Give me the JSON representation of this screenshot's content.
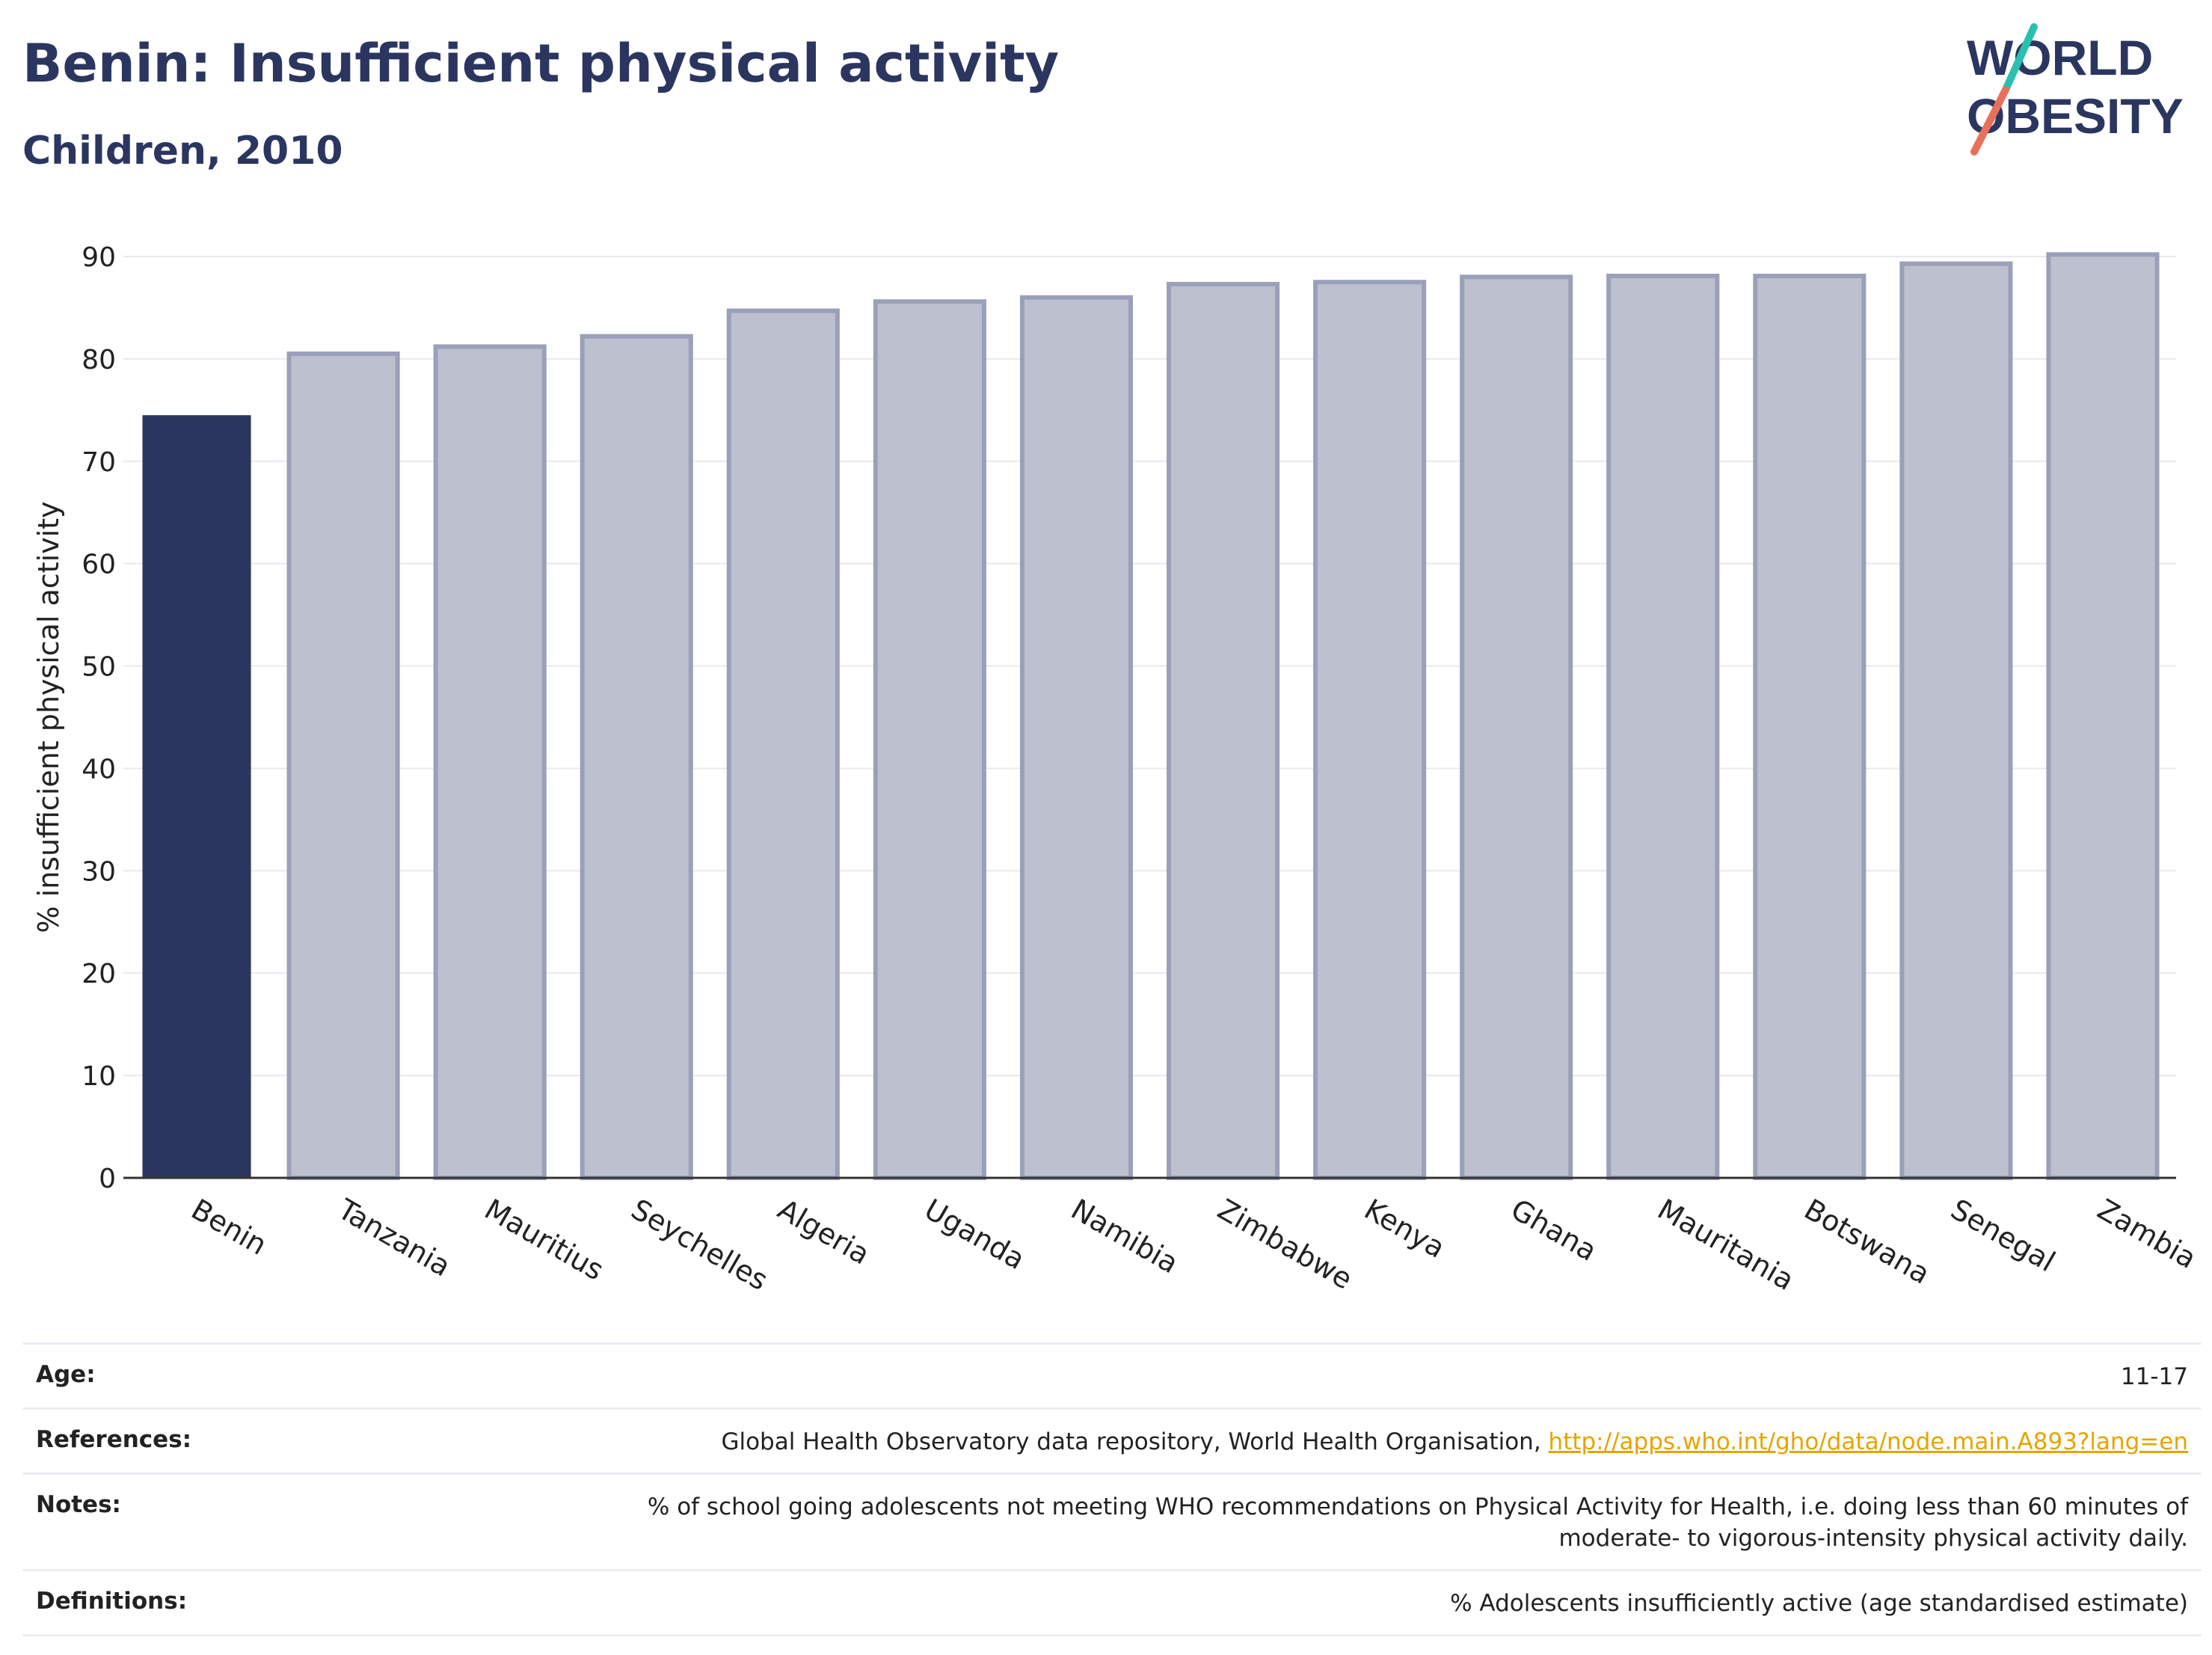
{
  "header": {
    "title": "Benin: Insufficient physical activity",
    "subtitle": "Children, 2010",
    "logo_line1": "WORLD",
    "logo_line2": "OBESITY"
  },
  "colors": {
    "highlight_bar": "#2b3660",
    "other_bar_fill": "#bcc0cf",
    "other_bar_stroke": "#9aa0b8",
    "logo_slash_teal": "#2bbfb0",
    "logo_slash_red": "#e8705a",
    "title": "#2b3660"
  },
  "chart_data": {
    "type": "bar",
    "title": "Benin: Insufficient physical activity",
    "subtitle": "Children, 2010",
    "ylabel": "% insufficient physical activity",
    "xlabel": "",
    "ylim": [
      0,
      90
    ],
    "yticks": [
      0,
      10,
      20,
      30,
      40,
      50,
      60,
      70,
      80,
      90
    ],
    "grid": true,
    "highlight": "Benin",
    "categories": [
      "Benin",
      "Tanzania",
      "Mauritius",
      "Seychelles",
      "Algeria",
      "Uganda",
      "Namibia",
      "Zimbabwe",
      "Kenya",
      "Ghana",
      "Mauritania",
      "Botswana",
      "Senegal",
      "Zambia"
    ],
    "values": [
      74.5,
      80.5,
      81.2,
      82.2,
      84.7,
      85.6,
      86.0,
      87.3,
      87.5,
      88.0,
      88.1,
      88.1,
      89.3,
      90.2
    ]
  },
  "info": {
    "age_label": "Age:",
    "age_value": "11-17",
    "references_label": "References:",
    "references_text": "Global Health Observatory data repository, World Health Organisation, ",
    "references_link": "http://apps.who.int/gho/data/node.main.A893?lang=en",
    "notes_label": "Notes:",
    "notes_line1": "% of school going adolescents not meeting WHO recommendations on Physical Activity for Health, i.e. doing less than 60 minutes of",
    "notes_line2": "moderate- to vigorous-intensity physical activity daily.",
    "definitions_label": "Definitions:",
    "definitions_value": "% Adolescents insufficiently active (age standardised estimate)"
  }
}
